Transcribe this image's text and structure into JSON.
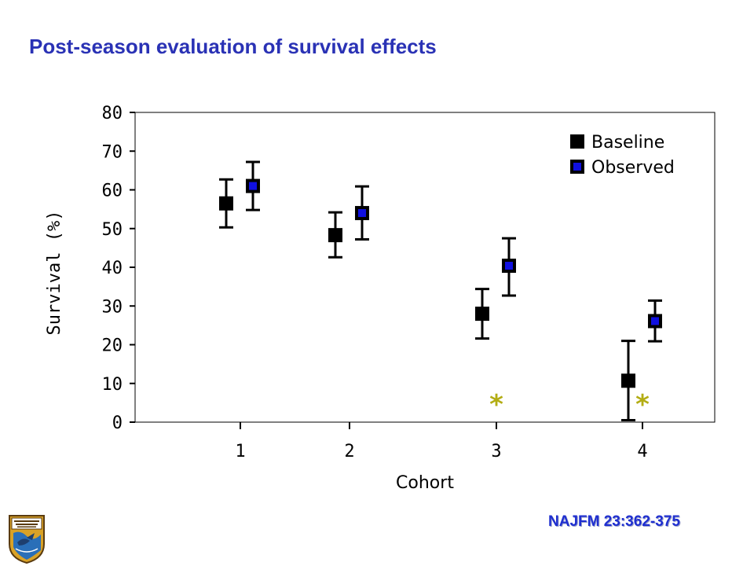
{
  "slide": {
    "title": "Post-season evaluation of survival effects",
    "citation": "NAJFM 23:362-375"
  },
  "logo": {
    "name": "us-fish-wildlife-service-emblem",
    "lettering": "U.S. FISH & WILDLIFE SERVICE"
  },
  "colors": {
    "title": "#2a32b5",
    "citation": "#1f2fd0",
    "baseline_marker": "#000000",
    "observed_marker": "#1010e0",
    "significance_star": "#b3ad14"
  },
  "chart_data": {
    "type": "scatter",
    "title": "",
    "xlabel": "Cohort",
    "ylabel": "Survival (%)",
    "categories": [
      "1",
      "2",
      "3",
      "4"
    ],
    "ylim": [
      0,
      80
    ],
    "yticks": [
      "0",
      "10",
      "20",
      "30",
      "40",
      "50",
      "60",
      "70",
      "80"
    ],
    "grid": false,
    "legend_position": "top-right",
    "series": [
      {
        "name": "Baseline",
        "color": "#000000",
        "values": [
          56.5,
          48.3,
          28.0,
          10.7
        ],
        "err_low": [
          50.3,
          42.6,
          21.6,
          0.5
        ],
        "err_high": [
          62.7,
          54.2,
          34.4,
          21.0
        ]
      },
      {
        "name": "Observed",
        "color": "#1010e0",
        "values": [
          61.0,
          54.0,
          40.4,
          26.1
        ],
        "err_low": [
          54.8,
          47.2,
          32.7,
          20.9
        ],
        "err_high": [
          67.2,
          60.9,
          47.5,
          31.4
        ]
      }
    ],
    "significance_markers": [
      {
        "category": "3",
        "symbol": "*"
      },
      {
        "category": "4",
        "symbol": "*"
      }
    ]
  }
}
